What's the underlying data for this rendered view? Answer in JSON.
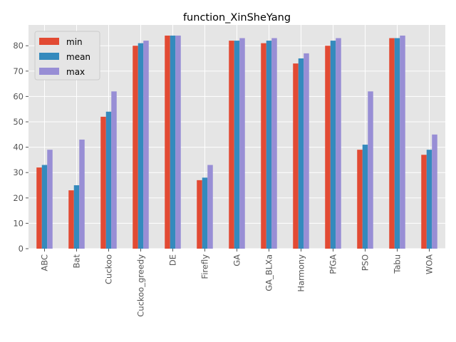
{
  "chart_data": {
    "type": "bar",
    "title": "function_XinSheYang",
    "xlabel": "",
    "ylabel": "",
    "categories": [
      "ABC",
      "Bat",
      "Cuckoo",
      "Cuckoo_greedy",
      "DE",
      "Firefly",
      "GA",
      "GA_BLXa",
      "Harmony",
      "PfGA",
      "PSO",
      "Tabu",
      "WOA"
    ],
    "series": [
      {
        "name": "min",
        "color": "#E24A33",
        "values": [
          32,
          23,
          52,
          80,
          84,
          27,
          82,
          81,
          73,
          80,
          39,
          83,
          37
        ]
      },
      {
        "name": "mean",
        "color": "#348ABD",
        "values": [
          33,
          25,
          54,
          81,
          84,
          28,
          82,
          82,
          75,
          82,
          41,
          83,
          39
        ]
      },
      {
        "name": "max",
        "color": "#988ED5",
        "values": [
          39,
          43,
          62,
          82,
          84,
          33,
          83,
          83,
          77,
          83,
          62,
          84,
          45
        ]
      }
    ],
    "ylim": [
      0,
      88.2
    ],
    "yticks": [
      0,
      10,
      20,
      30,
      40,
      50,
      60,
      70,
      80
    ],
    "grid": true,
    "legend_position": "top-left",
    "background": "#E5E5E5"
  }
}
